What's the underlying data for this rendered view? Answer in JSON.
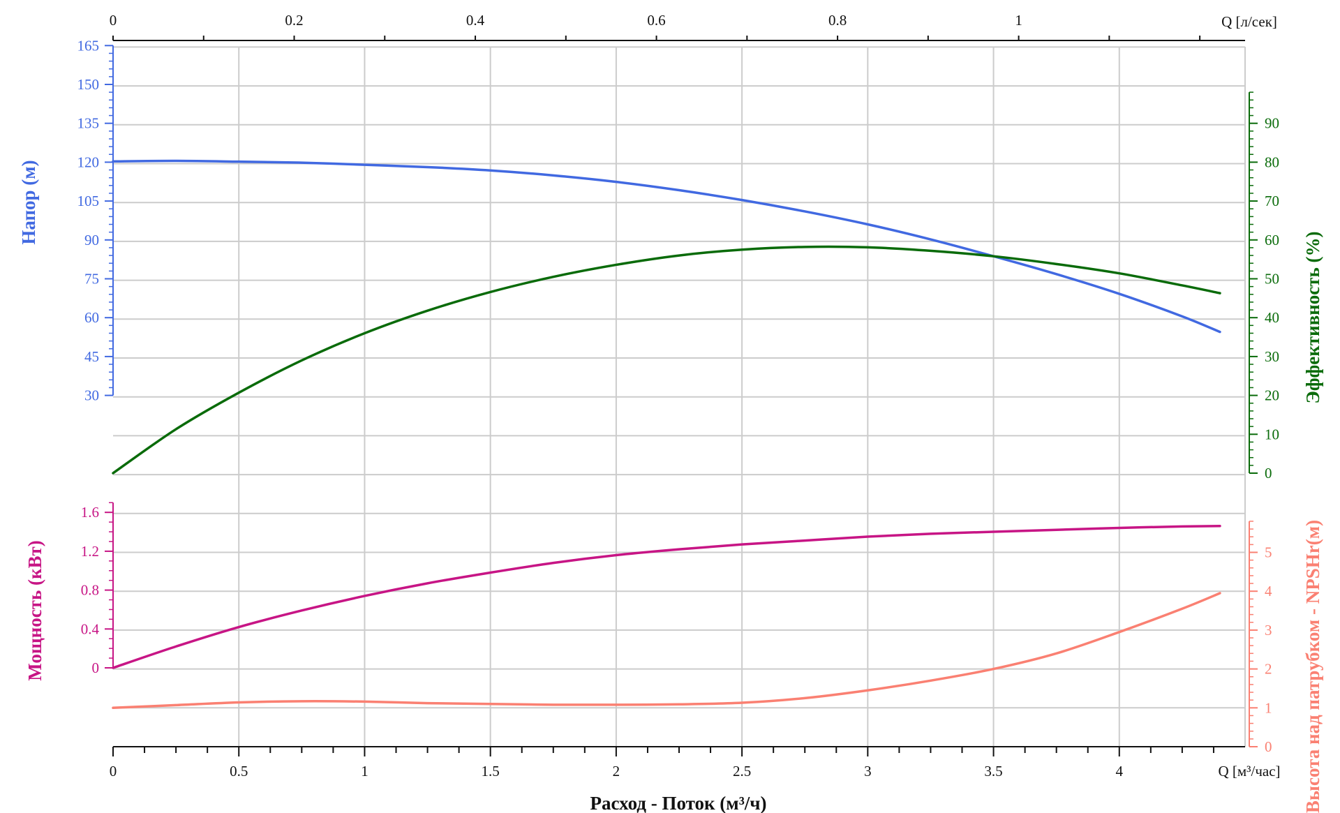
{
  "chart_data": {
    "type": "line",
    "x_axis": {
      "label": "Расход - Поток (м³/ч)",
      "unit_label": "Q [м³/час]",
      "range": [
        0,
        4.5
      ],
      "ticks": [
        0,
        0.5,
        1,
        1.5,
        2,
        2.5,
        3,
        3.5,
        4
      ]
    },
    "x2_axis": {
      "unit_label": "Q [л/сек]",
      "range": [
        0,
        1.25
      ],
      "ticks": [
        0,
        0.2,
        0.4,
        0.6,
        0.8,
        1
      ]
    },
    "panels": [
      {
        "axes": {
          "left": {
            "label": "Напор (м)",
            "ticks": [
              30,
              45,
              60,
              75,
              90,
              105,
              120,
              135,
              150,
              165
            ],
            "color": "#4169e1"
          },
          "right": {
            "label": "Эффективность (%)",
            "ticks": [
              0,
              10,
              20,
              30,
              40,
              50,
              60,
              70,
              80,
              90
            ],
            "color": "#0a6b0a"
          }
        },
        "series": [
          {
            "name": "Напор (м)",
            "axis": "left",
            "color": "#4169e1",
            "x": [
              0,
              0.25,
              0.5,
              0.75,
              1,
              1.25,
              1.5,
              1.75,
              2,
              2.25,
              2.5,
              2.75,
              3,
              3.25,
              3.5,
              3.75,
              4,
              4.25,
              4.4
            ],
            "y": [
              120.3,
              120.5,
              120.2,
              119.8,
              119.0,
              118.1,
              116.8,
              114.9,
              112.4,
              109.2,
              105.4,
              101.0,
              96.0,
              90.2,
              83.7,
              76.8,
              69.2,
              60.5,
              54.5
            ]
          },
          {
            "name": "Эффективность (%)",
            "axis": "right",
            "color": "#0a6b0a",
            "x": [
              0,
              0.25,
              0.5,
              0.75,
              1,
              1.25,
              1.5,
              1.75,
              2,
              2.25,
              2.5,
              2.75,
              3,
              3.25,
              3.5,
              3.75,
              4,
              4.25,
              4.4
            ],
            "y": [
              0,
              11.3,
              20.7,
              29,
              36,
              41.8,
              46.6,
              50.5,
              53.6,
              56,
              57.5,
              58.2,
              58.1,
              57.2,
              55.8,
              53.8,
              51.4,
              48.3,
              46.3
            ]
          }
        ]
      },
      {
        "axes": {
          "left": {
            "label": "Мощность (кВт)",
            "ticks": [
              0,
              0.4,
              0.8,
              1.2,
              1.6
            ],
            "color": "#c71585"
          },
          "right": {
            "label": "Высота над патрубком - NPSHr(м)",
            "ticks": [
              0,
              1,
              2,
              3,
              4,
              5
            ],
            "color": "#fa8072"
          }
        },
        "series": [
          {
            "name": "Мощность (кВт)",
            "axis": "left",
            "color": "#c71585",
            "x": [
              0,
              0.25,
              0.5,
              0.75,
              1,
              1.25,
              1.5,
              1.75,
              2,
              2.25,
              2.5,
              2.75,
              3,
              3.25,
              3.5,
              3.75,
              4,
              4.25,
              4.4
            ],
            "y": [
              0,
              0.22,
              0.42,
              0.59,
              0.74,
              0.87,
              0.98,
              1.08,
              1.16,
              1.22,
              1.27,
              1.31,
              1.35,
              1.38,
              1.4,
              1.42,
              1.44,
              1.455,
              1.46
            ]
          },
          {
            "name": "Высота над патрубком - NPSHr(м)",
            "axis": "right",
            "color": "#fa8072",
            "x": [
              0,
              0.25,
              0.5,
              0.75,
              1,
              1.25,
              1.5,
              1.75,
              2,
              2.25,
              2.5,
              2.75,
              3,
              3.25,
              3.5,
              3.75,
              4,
              4.25,
              4.4
            ],
            "y": [
              1.0,
              1.07,
              1.14,
              1.17,
              1.16,
              1.12,
              1.1,
              1.08,
              1.08,
              1.09,
              1.13,
              1.25,
              1.45,
              1.7,
              2.0,
              2.4,
              2.95,
              3.55,
              3.95
            ]
          }
        ]
      }
    ],
    "grid": true
  }
}
